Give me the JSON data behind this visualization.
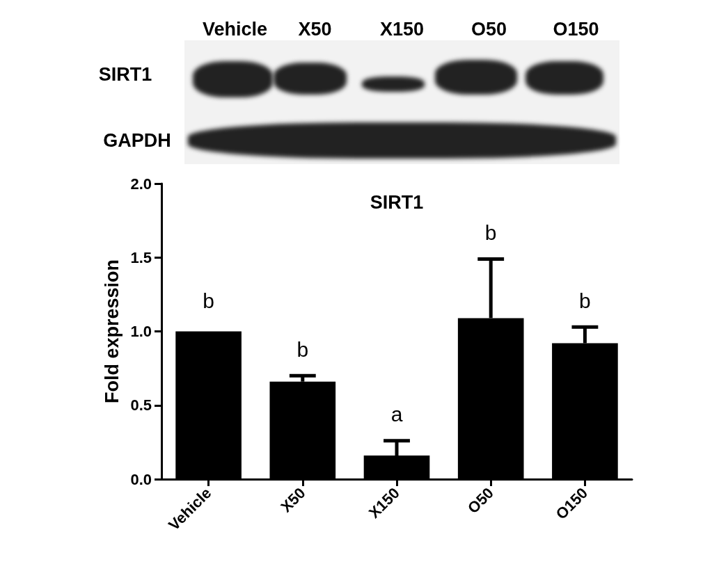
{
  "chart_data": {
    "type": "bar",
    "title": "SIRT1",
    "ylabel": "Fold expression",
    "categories": [
      "Vehicle",
      "X50",
      "X150",
      "O50",
      "O150"
    ],
    "values": [
      1.0,
      0.66,
      0.16,
      1.09,
      0.92
    ],
    "errors": [
      null,
      [
        0.66,
        0.7
      ],
      [
        0.16,
        0.26
      ],
      [
        1.09,
        1.49
      ],
      [
        0.92,
        1.03
      ]
    ],
    "color": "#000000",
    "ylim": [
      0,
      2.0
    ],
    "yticks": [
      {
        "value": 0,
        "label": "0.0"
      },
      {
        "value": 0.5,
        "label": "0.5"
      },
      {
        "value": 1.0,
        "label": "1.0"
      },
      {
        "value": 1.5,
        "label": "1.5"
      },
      {
        "value": 2.0,
        "label": "2.0"
      }
    ],
    "grid": false,
    "annotations": [
      "Vehicle",
      "X50",
      "X150",
      "O50",
      "O150",
      "SIRT1",
      "GAPDH",
      "b",
      "b",
      "a",
      "b",
      "b"
    ]
  }
}
